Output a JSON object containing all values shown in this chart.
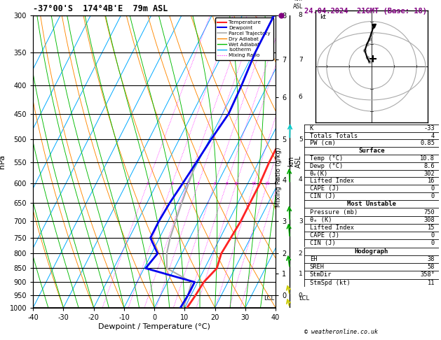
{
  "title_left": "-37°00'S  174°4B'E  79m ASL",
  "title_right": "24.04.2024  21GMT (Base: 18)",
  "xlabel": "Dewpoint / Temperature (°C)",
  "ylabel_left": "hPa",
  "ylabel_right": "km\nASL",
  "ylabel_mid": "Mixing Ratio (g/kg)",
  "pressure_levels": [
    300,
    350,
    400,
    450,
    500,
    550,
    600,
    650,
    700,
    750,
    800,
    850,
    900,
    950,
    1000
  ],
  "xlim": [
    -40,
    40
  ],
  "p_min": 300,
  "p_max": 1000,
  "skew_factor": 49.0,
  "color_temp": "#ff2222",
  "color_dewp": "#0000ee",
  "color_parcel": "#aaaaaa",
  "color_dry_adiabat": "#ff8800",
  "color_wet_adiabat": "#00bb00",
  "color_isotherm": "#00aaff",
  "color_mixing": "#ff00ff",
  "background": "#ffffff",
  "info_K": "-33",
  "info_TT": "4",
  "info_PW": "0.85",
  "info_surf_temp": "10.8",
  "info_surf_dewp": "8.6",
  "info_thetae": "302",
  "info_li": "16",
  "info_cape": "0",
  "info_cin": "0",
  "info_mu_pres": "750",
  "info_mu_thetae": "308",
  "info_mu_li": "15",
  "info_mu_cape": "0",
  "info_mu_cin": "0",
  "info_eh": "38",
  "info_sreh": "58",
  "info_stmdir": "358°",
  "info_stmspd": "11",
  "lcl_p": 962,
  "temp_data": {
    "p": [
      300,
      350,
      400,
      450,
      500,
      550,
      600,
      650,
      700,
      750,
      800,
      850,
      900,
      950,
      1000
    ],
    "T": [
      14.5,
      14.0,
      15.0,
      14.5,
      13.5,
      13.5,
      14.0,
      14.0,
      14.0,
      13.5,
      13.0,
      14.0,
      12.0,
      11.5,
      10.8
    ]
  },
  "dewp_data": {
    "p": [
      300,
      350,
      400,
      450,
      500,
      550,
      600,
      650,
      700,
      750,
      800,
      850,
      900,
      950,
      1000
    ],
    "T": [
      -9.5,
      -9.5,
      -8.5,
      -8.0,
      -9.5,
      -10.5,
      -11.5,
      -12.5,
      -13.0,
      -13.0,
      -8.0,
      -9.5,
      9.0,
      9.0,
      8.6
    ]
  },
  "parcel_data": {
    "p": [
      300,
      350,
      400,
      450,
      500,
      550,
      600,
      650,
      700,
      750,
      800,
      850,
      900,
      950,
      1000
    ],
    "T": [
      -9.5,
      -9.5,
      -8.5,
      -8.0,
      -9.5,
      -10.5,
      -9.5,
      -8.5,
      -7.5,
      -6.5,
      -5.0,
      -2.5,
      8.0,
      9.0,
      9.5
    ]
  },
  "mixing_ratios": [
    1,
    2,
    3,
    4,
    6,
    8,
    10,
    15,
    20,
    25
  ],
  "km_ticks": {
    "p": [
      300,
      360,
      420,
      500,
      590,
      700,
      800,
      870,
      950
    ],
    "km": [
      8,
      7,
      6,
      5,
      4,
      3,
      2,
      1,
      0
    ]
  },
  "wind_p": [
    300,
    500,
    600,
    700,
    750,
    850,
    950,
    1000
  ],
  "wind_dir": [
    350,
    5,
    350,
    350,
    340,
    330,
    315,
    310
  ],
  "wind_spd": [
    25,
    20,
    15,
    10,
    8,
    5,
    3,
    2
  ],
  "wind_colors": [
    "#00cccc",
    "#00cccc",
    "#00aa00",
    "#00aa00",
    "#00aa00",
    "#00aa00",
    "#cccc00",
    "#cccc00"
  ],
  "hodo_u": [
    -1,
    -2,
    -3,
    -2,
    -1,
    0,
    1
  ],
  "hodo_v": [
    2,
    4,
    7,
    10,
    12,
    15,
    18
  ],
  "storm_u": 0.5,
  "storm_v": 3.5
}
